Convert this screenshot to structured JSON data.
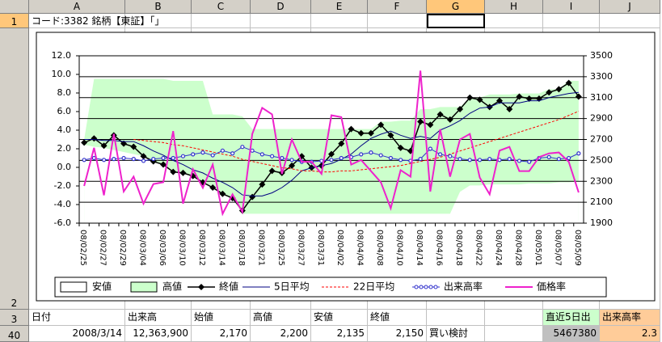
{
  "sheet": {
    "columns": [
      "A",
      "B",
      "C",
      "D",
      "E",
      "F",
      "G",
      "H",
      "I",
      "J"
    ],
    "rows": [
      {
        "number": 1,
        "cells": {
          "A": "コード:3382 銘柄【東証】「」"
        }
      },
      {
        "number": 2
      },
      {
        "number": 3,
        "cells": {
          "A": "日付",
          "B": "出来高",
          "C": "始値",
          "D": "高値",
          "E": "安値",
          "F": "終値",
          "I": "直近5日出",
          "J": "出来高率"
        }
      },
      {
        "number": 40,
        "cells": {
          "A": "2008/3/14",
          "B": "12,363,900",
          "C": "2,170",
          "D": "2,200",
          "E": "2,135",
          "F": "2,150",
          "G": "買い検討",
          "I": 5467380,
          "J": 2.3
        }
      }
    ]
  },
  "chart_data": {
    "type": "line",
    "categories": [
      "08/02/25",
      null,
      "08/02/27",
      null,
      "08/02/29",
      null,
      "08/03/04",
      null,
      "08/03/06",
      null,
      "08/03/10",
      null,
      "08/03/12",
      null,
      "08/03/14",
      null,
      "08/03/18",
      null,
      "08/03/21",
      null,
      "08/03/25",
      null,
      "08/03/27",
      null,
      "08/03/31",
      null,
      "08/04/02",
      null,
      "08/04/04",
      null,
      "08/04/08",
      null,
      "08/04/10",
      null,
      "08/04/14",
      null,
      "08/04/16",
      null,
      "08/04/18",
      null,
      "08/04/22",
      null,
      "08/04/24",
      null,
      "08/04/28",
      null,
      "08/05/01",
      null,
      "08/05/07",
      null,
      "08/05/09"
    ],
    "ylim": [
      -6,
      12
    ],
    "yticks": [
      {
        "value": -6,
        "label": "-6.0"
      },
      {
        "value": -4,
        "label": "-4.0"
      },
      {
        "value": -2,
        "label": "-2.0"
      },
      {
        "value": 0,
        "label": "0.0"
      },
      {
        "value": 2,
        "label": "2.0"
      },
      {
        "value": 4,
        "label": "4.0"
      },
      {
        "value": 6,
        "label": "6.0"
      },
      {
        "value": 8,
        "label": "8.0"
      },
      {
        "value": 10,
        "label": "10.0"
      },
      {
        "value": 12,
        "label": "12.0"
      }
    ],
    "y2lim": [
      1900,
      3500
    ],
    "y2ticks": [
      1900,
      2100,
      2300,
      2500,
      2700,
      2900,
      3100,
      3300,
      3500
    ],
    "grid": true,
    "legend": "bottom",
    "series": [
      {
        "name": "安値",
        "type": "area",
        "axis": "y2",
        "color": "#ffffff",
        "values": [
          2650,
          2630,
          2620,
          2600,
          2580,
          2560,
          2540,
          2490,
          2460,
          2390,
          2380,
          2350,
          2290,
          2240,
          2180,
          2140,
          1990,
          1990,
          1990,
          1990,
          1990,
          1990,
          1990,
          1990,
          1990,
          1990,
          1990,
          1990,
          1990,
          1990,
          1990,
          1990,
          1990,
          1990,
          1990,
          1990,
          1990,
          1990,
          2200,
          2260,
          2260,
          2270,
          2270,
          2270,
          2270,
          2280,
          2280,
          2280,
          2290,
          2290,
          2300
        ]
      },
      {
        "name": "高値",
        "type": "area",
        "axis": "y2",
        "color": "#ccffcc",
        "values": [
          2700,
          3280,
          3280,
          3280,
          3280,
          3280,
          3280,
          3280,
          3280,
          3260,
          3260,
          3260,
          3260,
          2940,
          2940,
          2940,
          2920,
          2800,
          2800,
          2800,
          2800,
          2800,
          2800,
          2800,
          2800,
          2800,
          2800,
          2800,
          2800,
          2800,
          2870,
          2870,
          2880,
          2880,
          2990,
          2990,
          3010,
          3010,
          3010,
          3100,
          3100,
          3130,
          3130,
          3130,
          3140,
          3140,
          3140,
          3180,
          3180,
          3260,
          3260
        ]
      },
      {
        "name": "終値",
        "type": "line",
        "axis": "y2",
        "color": "#000000",
        "marker": "diamond",
        "values": [
          2670,
          2710,
          2640,
          2740,
          2660,
          2630,
          2540,
          2490,
          2460,
          2390,
          2380,
          2350,
          2290,
          2240,
          2180,
          2140,
          2020,
          2150,
          2270,
          2400,
          2380,
          2450,
          2540,
          2430,
          2450,
          2560,
          2660,
          2800,
          2760,
          2760,
          2840,
          2740,
          2620,
          2590,
          2870,
          2840,
          2940,
          2890,
          2990,
          3100,
          3080,
          3010,
          3070,
          2990,
          3110,
          3090,
          3090,
          3150,
          3180,
          3240,
          3110
        ]
      },
      {
        "name": "5日平均",
        "type": "line",
        "axis": "y2",
        "color": "#000080",
        "values": [
          2700,
          2700,
          2690,
          2690,
          2680,
          2680,
          2640,
          2590,
          2550,
          2500,
          2460,
          2410,
          2380,
          2330,
          2290,
          2240,
          2170,
          2160,
          2160,
          2190,
          2240,
          2310,
          2400,
          2430,
          2450,
          2470,
          2510,
          2560,
          2640,
          2710,
          2750,
          2780,
          2740,
          2710,
          2730,
          2710,
          2790,
          2830,
          2880,
          2950,
          3000,
          3010,
          3050,
          3050,
          3050,
          3070,
          3070,
          3100,
          3120,
          3140,
          3150
        ]
      },
      {
        "name": "22日平均",
        "type": "line",
        "axis": "y2",
        "color": "#ff0000",
        "dash": true,
        "values": [
          null,
          null,
          null,
          null,
          null,
          2700,
          2690,
          2680,
          2670,
          2650,
          2640,
          2620,
          2600,
          2580,
          2560,
          2540,
          2510,
          2490,
          2470,
          2450,
          2430,
          2420,
          2400,
          2400,
          2390,
          2390,
          2400,
          2400,
          2410,
          2420,
          2430,
          2440,
          2450,
          2470,
          2490,
          2510,
          2530,
          2560,
          2590,
          2620,
          2650,
          2680,
          2710,
          2740,
          2770,
          2800,
          2830,
          2860,
          2890,
          2930,
          2970
        ]
      },
      {
        "name": "出来高率",
        "type": "line",
        "axis": "y",
        "color": "#3333cc",
        "marker": "circle",
        "values": [
          0.8,
          1.0,
          0.8,
          0.9,
          1.0,
          0.9,
          0.7,
          0.9,
          1.0,
          1.0,
          1.2,
          1.4,
          1.6,
          1.3,
          1.8,
          1.5,
          2.2,
          1.8,
          1.4,
          1.2,
          1.0,
          0.8,
          0.6,
          0.6,
          0.7,
          0.8,
          1.0,
          1.1,
          1.4,
          1.6,
          1.3,
          1.0,
          0.8,
          0.7,
          0.9,
          2.0,
          1.4,
          1.2,
          0.9,
          0.8,
          0.8,
          0.9,
          0.8,
          0.9,
          0.7,
          0.6,
          1.0,
          1.1,
          0.9,
          1.0,
          1.5
        ]
      },
      {
        "name": "価格率",
        "type": "line",
        "axis": "y",
        "color": "#ee22cc",
        "values": [
          -2.0,
          2.1,
          -3.0,
          3.6,
          -2.6,
          -1.0,
          -3.9,
          -1.8,
          -1.6,
          3.9,
          -3.9,
          -0.2,
          -2.2,
          0.3,
          -5.0,
          -2.9,
          -4.8,
          3.6,
          6.4,
          5.7,
          -0.7,
          3.0,
          0.6,
          0.6,
          -0.7,
          5.6,
          5.4,
          0.3,
          0.8,
          -0.4,
          -1.6,
          -4.4,
          -0.3,
          -1.0,
          10.4,
          -2.6,
          4.1,
          -1.0,
          3.0,
          3.6,
          -1.1,
          -2.9,
          1.8,
          2.2,
          -0.4,
          -0.4,
          1.1,
          1.5,
          1.6,
          0.6,
          -2.7
        ]
      }
    ]
  }
}
